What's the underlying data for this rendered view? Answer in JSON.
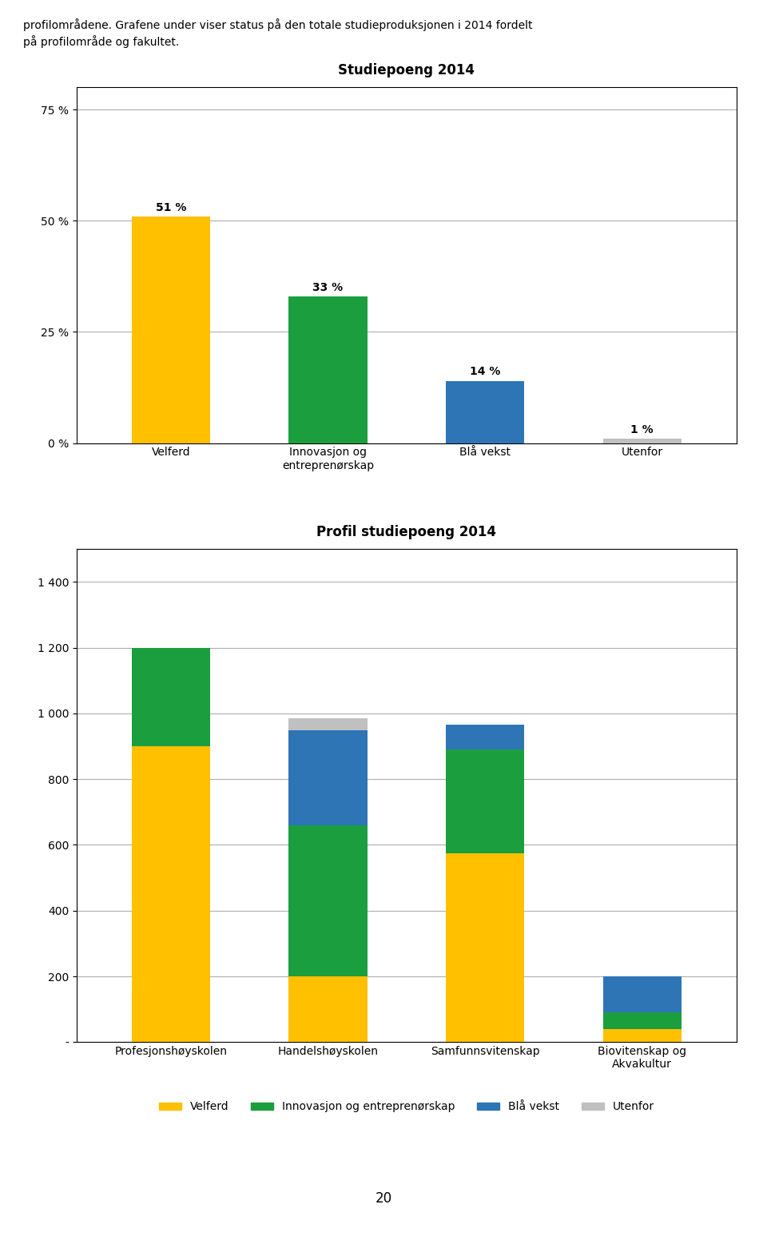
{
  "chart_data": [
    {
      "type": "bar",
      "title": "Studiepoeng 2014",
      "categories": [
        "Velferd",
        "Innovasjon og\nentreprenørskap",
        "Blå vekst",
        "Utenfor"
      ],
      "values": [
        51,
        33,
        14,
        1
      ],
      "value_labels": [
        "51 %",
        "33 %",
        "14 %",
        "1 %"
      ],
      "data_labels": true,
      "colors": [
        "#FFC000",
        "#1B9E3E",
        "#2E75B6",
        "#C0C0C0"
      ],
      "ylim": [
        0,
        80
      ],
      "yticks": [
        {
          "value": 0,
          "label": "0 %"
        },
        {
          "value": 25,
          "label": "25 %"
        },
        {
          "value": 50,
          "label": "50 %"
        },
        {
          "value": 75,
          "label": "75 %"
        }
      ],
      "grid": true
    },
    {
      "type": "bar",
      "title": "Profil studiepoeng 2014",
      "stacked": true,
      "categories": [
        "Profesjonshøyskolen",
        "Handelshøyskolen",
        "Samfunnsvitenskap",
        "Biovitenskap og\nAkvakultur"
      ],
      "series": [
        {
          "name": "Velferd",
          "color": "#FFC000",
          "values": [
            900,
            200,
            575,
            40
          ]
        },
        {
          "name": "Innovasjon og entreprenørskap",
          "color": "#1B9E3E",
          "values": [
            300,
            460,
            315,
            50
          ]
        },
        {
          "name": "Blå vekst",
          "color": "#2E75B6",
          "values": [
            0,
            290,
            75,
            110
          ]
        },
        {
          "name": "Utenfor",
          "color": "#C0C0C0",
          "values": [
            0,
            35,
            0,
            0
          ]
        }
      ],
      "ylim": [
        0,
        1500
      ],
      "yticks": [
        {
          "value": 0,
          "label": "-"
        },
        200,
        400,
        600,
        800,
        {
          "value": 1000,
          "label": "1 000"
        },
        {
          "value": 1200,
          "label": "1 200"
        },
        {
          "value": 1400,
          "label": "1 400"
        }
      ],
      "grid": true,
      "legend": "upper center"
    }
  ],
  "annotations": [
    "profilområdene. Grafene under viser status på den totale studieproduksjonen i 2014 fordelt",
    "på profilområde og fakultet.",
    "20"
  ]
}
